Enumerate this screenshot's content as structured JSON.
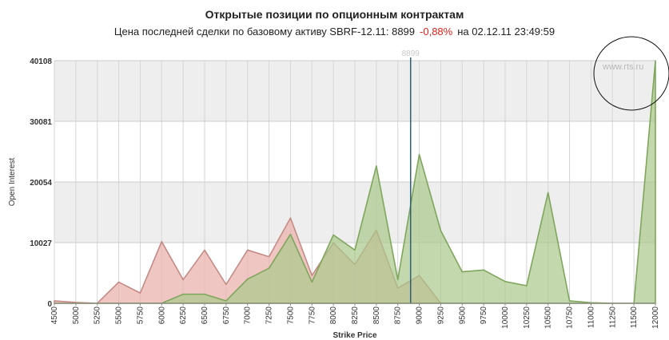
{
  "header": {
    "title": "Открытые позиции по опционным контрактам",
    "subtitle_prefix": "Цена последней сделки по базовому активу SBRF-12.11: 8899",
    "change": "-0,88%",
    "subtitle_suffix": "на 02.12.11 23:49:59"
  },
  "watermark": "www.rts.ru",
  "colors": {
    "put_fill": "#e9b3ad",
    "put_stroke": "#c48b86",
    "call_fill": "#a9c98a",
    "call_stroke": "#7fa65c",
    "price_line": "#2f5f7a",
    "band": "#eeeeee",
    "change": "#e0221c"
  },
  "chart_data": {
    "type": "area",
    "xlabel": "Strike Price",
    "ylabel": "Open Interest",
    "ylim": [
      0,
      40108
    ],
    "yticks": [
      0,
      10027,
      20054,
      30081,
      40108
    ],
    "grid": true,
    "categories": [
      "4500",
      "5000",
      "5250",
      "5500",
      "5750",
      "6000",
      "6250",
      "6500",
      "6750",
      "7000",
      "7250",
      "7500",
      "7750",
      "8000",
      "8250",
      "8500",
      "8750",
      "9000",
      "9250",
      "9500",
      "9750",
      "10000",
      "10250",
      "10500",
      "10750",
      "11000",
      "11250",
      "11500",
      "12000"
    ],
    "series": [
      {
        "name": "",
        "values": [
          400,
          150,
          0,
          3500,
          1700,
          10200,
          3900,
          8800,
          3100,
          8800,
          7700,
          14100,
          4600,
          10000,
          6400,
          12100,
          2500,
          4600,
          0,
          0,
          0,
          0,
          0,
          0,
          0,
          0,
          0,
          0,
          0
        ]
      },
      {
        "name": "",
        "values": [
          0,
          0,
          0,
          0,
          0,
          0,
          1500,
          1500,
          400,
          4000,
          5800,
          11400,
          3500,
          11300,
          8800,
          22700,
          3900,
          24600,
          12000,
          5200,
          5500,
          3600,
          2900,
          18300,
          400,
          100,
          0,
          0,
          40100
        ]
      }
    ],
    "marker": {
      "x": 8899,
      "label": "8899"
    }
  }
}
